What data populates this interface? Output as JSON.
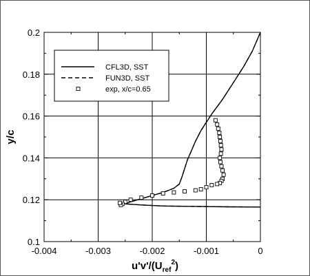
{
  "chart_data": {
    "type": "line",
    "xlabel": "u'v'/(U",
    "xlabel_sub": "ref",
    "xlabel_sup": "2",
    "xlabel_close": ")",
    "ylabel": "y/c",
    "xlim": [
      -0.004,
      0
    ],
    "ylim": [
      0.1,
      0.2
    ],
    "x_ticks": [
      -0.004,
      -0.003,
      -0.002,
      -0.001,
      0
    ],
    "x_tick_labels": [
      "-0.004",
      "-0.003",
      "-0.002",
      "-0.001",
      "0"
    ],
    "y_ticks": [
      0.1,
      0.12,
      0.14,
      0.16,
      0.18,
      0.2
    ],
    "y_tick_labels": [
      "0.1",
      "0.12",
      "0.14",
      "0.16",
      "0.18",
      "0.2"
    ],
    "grid": true,
    "legend_placement": "top-left",
    "series": [
      {
        "name": "CFL3D, SST",
        "style": "solid",
        "x": [
          0,
          -5e-05,
          -0.00015,
          -0.0003,
          -0.0005,
          -0.0007,
          -0.0009,
          -0.0011,
          -0.0012,
          -0.0013,
          -0.00135,
          -0.0014,
          -0.00145,
          -0.0015,
          -0.0016,
          -0.0018,
          -0.002,
          -0.0022,
          -0.0024,
          -0.0025,
          -0.0022,
          -0.0018,
          -0.0012,
          -0.0006,
          0
        ],
        "y": [
          0.2,
          0.197,
          0.191,
          0.184,
          0.176,
          0.168,
          0.161,
          0.153,
          0.148,
          0.142,
          0.139,
          0.135,
          0.131,
          0.1275,
          0.1255,
          0.1235,
          0.122,
          0.1205,
          0.119,
          0.118,
          0.1175,
          0.117,
          0.1168,
          0.1166,
          0.1165
        ]
      },
      {
        "name": "FUN3D, SST",
        "style": "dashed",
        "x": [
          0,
          -5e-05,
          -0.00015,
          -0.0003,
          -0.0005,
          -0.0007,
          -0.0009,
          -0.0011,
          -0.0012,
          -0.0013,
          -0.00135,
          -0.0014,
          -0.00145,
          -0.0015,
          -0.0016,
          -0.0018,
          -0.002,
          -0.0022,
          -0.0024,
          -0.0025,
          -0.0022,
          -0.0018,
          -0.0012,
          -0.0006,
          0
        ],
        "y": [
          0.2,
          0.197,
          0.191,
          0.184,
          0.176,
          0.168,
          0.161,
          0.153,
          0.148,
          0.142,
          0.139,
          0.135,
          0.131,
          0.1275,
          0.1255,
          0.1235,
          0.122,
          0.1205,
          0.119,
          0.118,
          0.1175,
          0.117,
          0.1168,
          0.1166,
          0.1165
        ]
      },
      {
        "name": "exp, x/c=0.65",
        "style": "markers",
        "x": [
          -0.00083,
          -0.0008,
          -0.00078,
          -0.00076,
          -0.00075,
          -0.00074,
          -0.00073,
          -0.00072,
          -0.00073,
          -0.00075,
          -0.00074,
          -0.00072,
          -0.0007,
          -0.00068,
          -0.0007,
          -0.00072,
          -0.00075,
          -0.0008,
          -0.0009,
          -0.001,
          -0.0011,
          -0.0012,
          -0.0014,
          -0.0016,
          -0.0018,
          -0.002,
          -0.0022,
          -0.0024,
          -0.0025,
          -0.00255,
          -0.00258,
          -0.0026
        ],
        "y": [
          0.158,
          0.156,
          0.154,
          0.152,
          0.15,
          0.148,
          0.146,
          0.144,
          0.142,
          0.14,
          0.138,
          0.136,
          0.134,
          0.132,
          0.13,
          0.129,
          0.128,
          0.1275,
          0.127,
          0.126,
          0.125,
          0.1245,
          0.124,
          0.1235,
          0.123,
          0.122,
          0.121,
          0.12,
          0.119,
          0.118,
          0.1175,
          0.1185
        ]
      }
    ]
  }
}
